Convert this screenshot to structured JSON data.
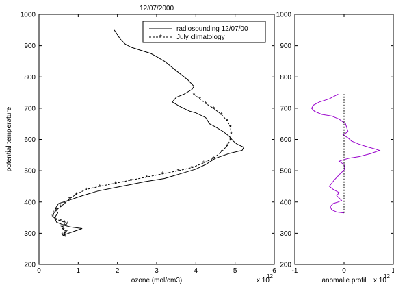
{
  "colors": {
    "background": "#ffffff",
    "axes": "#000000",
    "anomaly_line": "#9900cc"
  },
  "chart_data": [
    {
      "type": "line",
      "title": "12/07/2000",
      "xlabel": "ozone (mol/cm3)",
      "ylabel": "potential temperature",
      "x_multiplier": "x 10",
      "x_multiplier_exponent": "12",
      "xlim": [
        0,
        6
      ],
      "ylim": [
        200,
        1000
      ],
      "xticks": [
        0,
        1,
        2,
        3,
        4,
        5,
        6
      ],
      "yticks": [
        200,
        300,
        400,
        500,
        600,
        700,
        800,
        900,
        1000
      ],
      "legend_position": "top-right",
      "series": [
        {
          "name": "radiosounding 12/07/00",
          "style": "solid",
          "x": [
            1.92,
            2.0,
            2.08,
            2.2,
            2.35,
            2.6,
            2.85,
            3.0,
            3.2,
            3.45,
            3.6,
            3.8,
            3.95,
            3.9,
            3.7,
            3.5,
            3.4,
            3.6,
            3.85,
            4.0,
            4.25,
            4.35,
            4.5,
            4.7,
            4.85,
            4.95,
            5.05,
            5.22,
            5.18,
            4.85,
            4.5,
            4.25,
            4.0,
            3.6,
            3.2,
            2.7,
            2.3,
            1.9,
            1.5,
            1.1,
            0.75,
            0.5,
            0.42,
            0.48,
            0.4,
            0.45,
            0.65,
            0.8,
            1.1,
            0.75,
            0.65
          ],
          "y": [
            950,
            935,
            920,
            905,
            895,
            885,
            875,
            865,
            850,
            825,
            810,
            790,
            770,
            760,
            745,
            735,
            720,
            705,
            690,
            685,
            670,
            650,
            640,
            625,
            610,
            595,
            585,
            575,
            565,
            555,
            540,
            520,
            505,
            490,
            475,
            465,
            455,
            445,
            435,
            420,
            405,
            395,
            380,
            365,
            350,
            335,
            325,
            320,
            315,
            300,
            295
          ]
        },
        {
          "name": "July climatology",
          "style": "dashed-star",
          "x": [
            3.95,
            4.1,
            4.25,
            4.45,
            4.65,
            4.8,
            4.88,
            4.9,
            4.88,
            4.8,
            4.65,
            4.45,
            4.2,
            3.9,
            3.55,
            3.15,
            2.75,
            2.35,
            1.95,
            1.55,
            1.2,
            0.95,
            0.78,
            0.65,
            0.55,
            0.45,
            0.38,
            0.35,
            0.42,
            0.55,
            0.65,
            0.72,
            0.65,
            0.58,
            0.62,
            0.7,
            0.65,
            0.6,
            0.65
          ],
          "y": [
            745,
            730,
            715,
            700,
            680,
            660,
            640,
            620,
            600,
            580,
            560,
            540,
            525,
            510,
            500,
            490,
            480,
            470,
            460,
            450,
            440,
            425,
            410,
            395,
            385,
            375,
            365,
            355,
            345,
            340,
            335,
            330,
            325,
            320,
            312,
            305,
            300,
            295,
            290
          ]
        }
      ]
    },
    {
      "type": "line",
      "title": "",
      "xlabel": "anomalie profil",
      "ylabel": "",
      "x_multiplier": "x 10",
      "x_multiplier_exponent": "12",
      "xlim": [
        -1,
        1
      ],
      "ylim": [
        200,
        1000
      ],
      "xticks": [
        -1,
        0,
        1
      ],
      "yticks": [
        200,
        300,
        400,
        500,
        600,
        700,
        800,
        900,
        1000
      ],
      "series": [
        {
          "name": "",
          "style": "solid-purple",
          "x": [
            -0.12,
            -0.3,
            -0.5,
            -0.62,
            -0.66,
            -0.6,
            -0.45,
            -0.25,
            -0.1,
            0.03,
            0.08,
            -0.02,
            0.08,
            0.15,
            0.3,
            0.5,
            0.62,
            0.72,
            0.55,
            0.3,
            0.1,
            -0.02,
            -0.1,
            0.0,
            0.02,
            -0.08,
            -0.2,
            -0.3,
            -0.22,
            -0.1,
            -0.15,
            -0.05,
            -0.12,
            -0.22,
            -0.28,
            -0.25,
            -0.15,
            0.0
          ],
          "y": [
            745,
            730,
            720,
            710,
            700,
            690,
            680,
            675,
            665,
            650,
            625,
            615,
            605,
            595,
            585,
            575,
            570,
            565,
            555,
            545,
            540,
            535,
            530,
            520,
            505,
            490,
            470,
            450,
            440,
            430,
            420,
            405,
            400,
            395,
            385,
            375,
            368,
            365
          ]
        },
        {
          "name": "",
          "style": "dashed-zero",
          "x": [
            0,
            0
          ],
          "y": [
            365,
            745
          ]
        }
      ]
    }
  ],
  "legend": {
    "entries": [
      {
        "label": "radiosounding 12/07/00"
      },
      {
        "label": "July climatology"
      }
    ]
  }
}
